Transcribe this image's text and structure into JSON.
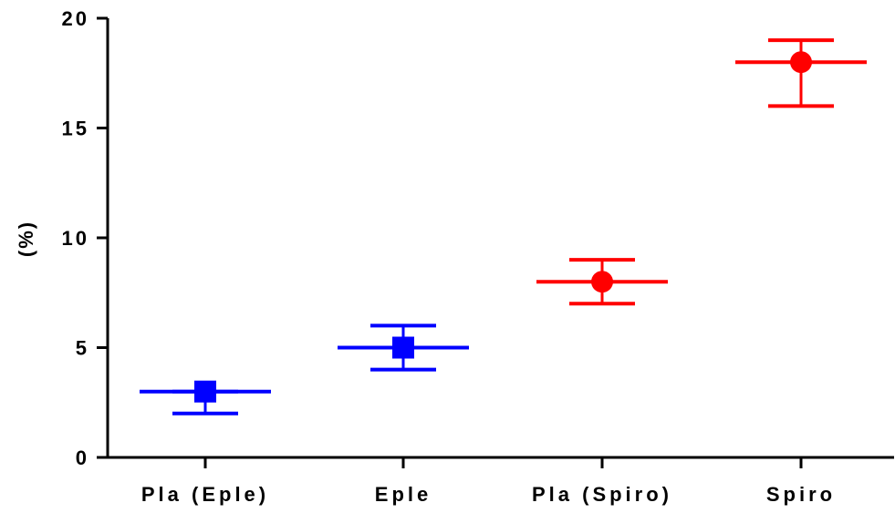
{
  "chart_data": {
    "type": "scatter",
    "title": "",
    "xlabel": "",
    "ylabel": "(%)",
    "ylim": [
      0,
      20
    ],
    "yticks": [
      0,
      5,
      10,
      15,
      20
    ],
    "grid": false,
    "categories": [
      "Pla (Eple)",
      "Eple",
      "Pla (Spiro)",
      "Spiro"
    ],
    "points": [
      {
        "category": "Pla (Eple)",
        "mean": 3,
        "lower": 2,
        "upper": 3,
        "marker": "square",
        "color": "#0000ff"
      },
      {
        "category": "Eple",
        "mean": 5,
        "lower": 4,
        "upper": 6,
        "marker": "square",
        "color": "#0000ff"
      },
      {
        "category": "Pla (Spiro)",
        "mean": 8,
        "lower": 7,
        "upper": 9,
        "marker": "circle",
        "color": "#ff0000"
      },
      {
        "category": "Spiro",
        "mean": 18,
        "lower": 16,
        "upper": 19,
        "marker": "circle",
        "color": "#ff0000"
      }
    ]
  }
}
